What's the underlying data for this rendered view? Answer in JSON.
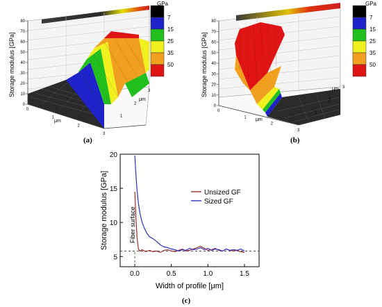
{
  "panels": {
    "a": {
      "label": "(a)",
      "zlabel": "Storage modulus [GPa]",
      "xlabel": "μm",
      "ylabel": "μm",
      "z_ticks": [
        "0",
        "10",
        "20",
        "30",
        "40",
        "50",
        "60",
        "70",
        "80"
      ],
      "x_ticks": [
        "0",
        "1",
        "2",
        "3"
      ],
      "y_ticks": [
        "1",
        "2",
        "3"
      ],
      "colorbar_title": "GPa",
      "colorbar_labels": [
        "7",
        "15",
        "25",
        "35",
        "50"
      ],
      "colors": [
        "#000000",
        "#1e22c8",
        "#22c01e",
        "#f0f01e",
        "#f0a01e",
        "#e01414"
      ]
    },
    "b": {
      "label": "(b)",
      "zlabel": "Storage modulus [GPa]",
      "xlabel": "μm",
      "ylabel": "μm",
      "z_ticks": [
        "0",
        "10",
        "20",
        "30",
        "40",
        "50",
        "60",
        "70",
        "80"
      ],
      "x_ticks": [
        "0",
        "1",
        "2",
        "3"
      ],
      "y_ticks": [
        "1",
        "2",
        "3"
      ],
      "colorbar_title": "GPa",
      "colorbar_labels": [
        "7",
        "15",
        "25",
        "35",
        "50"
      ],
      "colors": [
        "#000000",
        "#1e22c8",
        "#22c01e",
        "#f0f01e",
        "#f0a01e",
        "#e01414"
      ]
    }
  },
  "chart_data": {
    "type": "line",
    "label": "(c)",
    "xlabel": "Width of profile [μm]",
    "ylabel": "Storage modulus [GPa]",
    "xlim": [
      -0.2,
      1.7
    ],
    "ylim": [
      3.5,
      20
    ],
    "x_ticks": [
      0.0,
      0.5,
      1.0,
      1.5
    ],
    "y_ticks": [
      5,
      10,
      15,
      20
    ],
    "annotation": "Fiber surface",
    "reference_y": 5.8,
    "reference_x": 0.0,
    "legend": "top-right",
    "series": [
      {
        "name": "Unsized GF",
        "color": "#a0302a",
        "points": [
          [
            0.0,
            14.5
          ],
          [
            0.01,
            12.0
          ],
          [
            0.02,
            9.8
          ],
          [
            0.03,
            8.0
          ],
          [
            0.04,
            6.9
          ],
          [
            0.05,
            6.1
          ],
          [
            0.07,
            5.8
          ],
          [
            0.1,
            6.0
          ],
          [
            0.15,
            5.7
          ],
          [
            0.2,
            5.9
          ],
          [
            0.25,
            5.7
          ],
          [
            0.3,
            5.8
          ],
          [
            0.35,
            5.6
          ],
          [
            0.4,
            5.9
          ],
          [
            0.45,
            6.0
          ],
          [
            0.5,
            5.8
          ],
          [
            0.55,
            5.7
          ],
          [
            0.6,
            5.9
          ],
          [
            0.65,
            6.1
          ],
          [
            0.7,
            5.8
          ],
          [
            0.75,
            5.9
          ],
          [
            0.8,
            6.1
          ],
          [
            0.85,
            6.3
          ],
          [
            0.9,
            6.5
          ],
          [
            0.95,
            6.2
          ],
          [
            1.0,
            5.9
          ],
          [
            1.05,
            6.0
          ],
          [
            1.1,
            6.2
          ],
          [
            1.15,
            5.9
          ],
          [
            1.2,
            5.8
          ],
          [
            1.25,
            6.1
          ],
          [
            1.3,
            5.9
          ],
          [
            1.35,
            5.8
          ],
          [
            1.4,
            5.9
          ],
          [
            1.45,
            5.7
          ],
          [
            1.5,
            5.6
          ]
        ]
      },
      {
        "name": "Sized GF",
        "color": "#3030c0",
        "points": [
          [
            0.0,
            19.8
          ],
          [
            0.01,
            18.0
          ],
          [
            0.02,
            16.3
          ],
          [
            0.03,
            14.8
          ],
          [
            0.05,
            12.8
          ],
          [
            0.07,
            11.4
          ],
          [
            0.1,
            10.0
          ],
          [
            0.13,
            9.2
          ],
          [
            0.16,
            8.5
          ],
          [
            0.2,
            7.9
          ],
          [
            0.25,
            7.6
          ],
          [
            0.3,
            7.2
          ],
          [
            0.35,
            6.7
          ],
          [
            0.4,
            6.4
          ],
          [
            0.45,
            6.3
          ],
          [
            0.5,
            6.1
          ],
          [
            0.55,
            6.0
          ],
          [
            0.6,
            5.8
          ],
          [
            0.65,
            6.0
          ],
          [
            0.7,
            5.9
          ],
          [
            0.75,
            6.2
          ],
          [
            0.8,
            6.0
          ],
          [
            0.85,
            6.1
          ],
          [
            0.9,
            6.3
          ],
          [
            0.95,
            6.0
          ],
          [
            1.0,
            6.2
          ],
          [
            1.05,
            5.9
          ],
          [
            1.1,
            6.1
          ],
          [
            1.15,
            6.0
          ],
          [
            1.2,
            5.8
          ],
          [
            1.25,
            6.1
          ],
          [
            1.3,
            5.9
          ],
          [
            1.35,
            6.0
          ],
          [
            1.4,
            5.9
          ],
          [
            1.45,
            6.1
          ],
          [
            1.5,
            5.8
          ]
        ]
      }
    ]
  }
}
